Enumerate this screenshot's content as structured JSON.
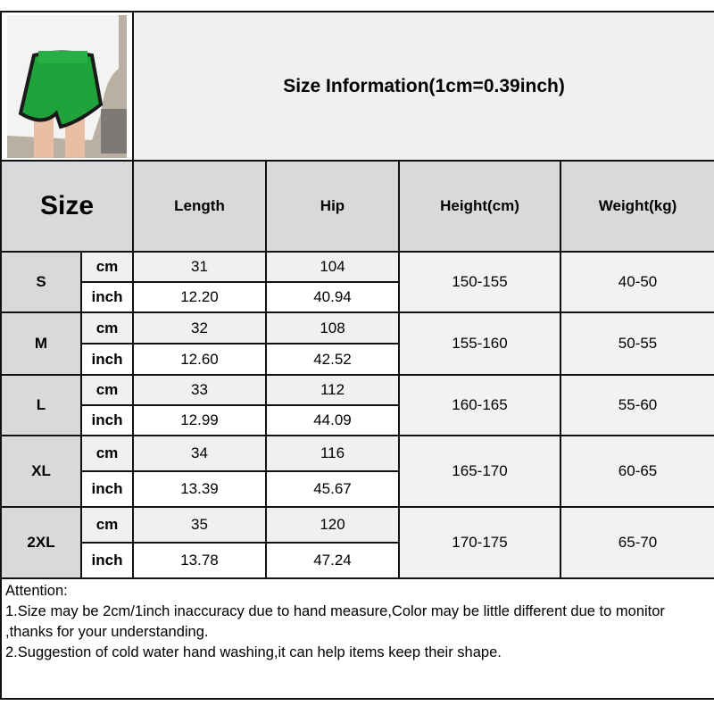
{
  "title": "Size Information(1cm=0.39inch)",
  "header": {
    "size": "Size",
    "columns": [
      "Length",
      "Hip",
      "Height(cm)",
      "Weight(kg)"
    ]
  },
  "units": {
    "cm": "cm",
    "inch": "inch"
  },
  "rows": [
    {
      "size": "S",
      "cm": [
        "31",
        "104"
      ],
      "inch": [
        "12.20",
        "40.94"
      ],
      "height": "150-155",
      "weight": "40-50"
    },
    {
      "size": "M",
      "cm": [
        "32",
        "108"
      ],
      "inch": [
        "12.60",
        "42.52"
      ],
      "height": "155-160",
      "weight": "50-55"
    },
    {
      "size": "L",
      "cm": [
        "33",
        "112"
      ],
      "inch": [
        "12.99",
        "44.09"
      ],
      "height": "160-165",
      "weight": "55-60"
    },
    {
      "size": "XL",
      "cm": [
        "34",
        "116"
      ],
      "inch": [
        "13.39",
        "45.67"
      ],
      "height": "165-170",
      "weight": "60-65"
    },
    {
      "size": "2XL",
      "cm": [
        "35",
        "120"
      ],
      "inch": [
        "13.78",
        "47.24"
      ],
      "height": "170-175",
      "weight": "65-70"
    }
  ],
  "notes": {
    "heading": "Attention:",
    "lines": [
      "1.Size may be 2cm/1inch inaccuracy due to hand measure,Color may be little different due to monitor ,thanks for your understanding.",
      "2.Suggestion of cold water hand washing,it can help items keep their shape."
    ]
  },
  "photo": {
    "shorts_color": "#1fa33a",
    "trim_color": "#1a1a1a"
  }
}
